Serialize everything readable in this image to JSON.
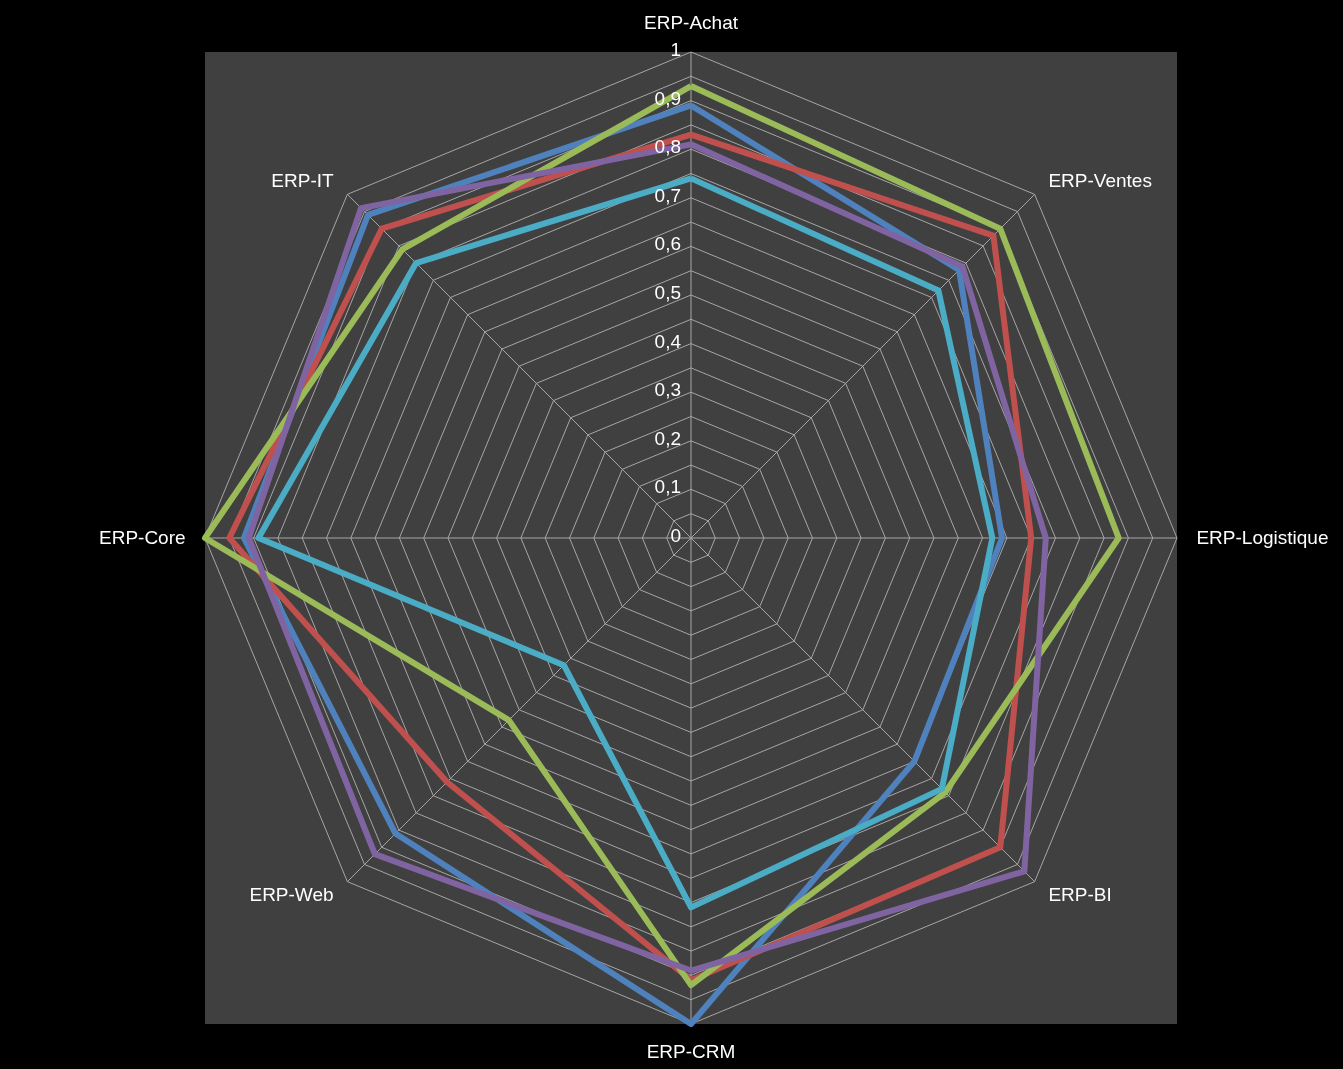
{
  "chart_data": {
    "type": "radar",
    "categories": [
      "ERP-Achat",
      "ERP-Ventes",
      "ERP-Logistique",
      "ERP-BI",
      "ERP-CRM",
      "ERP-Web",
      "ERP-Core",
      "ERP-IT"
    ],
    "series": [
      {
        "color": "#4f81bd",
        "values": [
          0.89,
          0.78,
          0.64,
          0.65,
          1.0,
          0.86,
          0.92,
          0.94
        ]
      },
      {
        "color": "#c0504d",
        "values": [
          0.83,
          0.88,
          0.7,
          0.9,
          0.91,
          0.71,
          0.95,
          0.9
        ]
      },
      {
        "color": "#9bbb59",
        "values": [
          0.93,
          0.9,
          0.88,
          0.74,
          0.92,
          0.53,
          1.0,
          0.84
        ]
      },
      {
        "color": "#8064a2",
        "values": [
          0.81,
          0.79,
          0.73,
          0.97,
          0.89,
          0.92,
          0.91,
          0.96
        ]
      },
      {
        "color": "#4bacc6",
        "values": [
          0.74,
          0.72,
          0.62,
          0.73,
          0.76,
          0.37,
          0.89,
          0.8
        ]
      }
    ],
    "ylim": [
      0,
      1
    ],
    "yticks": [
      0,
      {
        "value": 0.1,
        "label": "0,1"
      },
      {
        "value": 0.2,
        "label": "0,2"
      },
      {
        "value": 0.3,
        "label": "0,3"
      },
      {
        "value": 0.4,
        "label": "0,4"
      },
      {
        "value": 0.5,
        "label": "0,5"
      },
      {
        "value": 0.6,
        "label": "0,6"
      },
      {
        "value": 0.7,
        "label": "0,7"
      },
      {
        "value": 0.8,
        "label": "0,8"
      },
      {
        "value": 0.9,
        "label": "0,9"
      },
      1
    ],
    "grid": true
  }
}
